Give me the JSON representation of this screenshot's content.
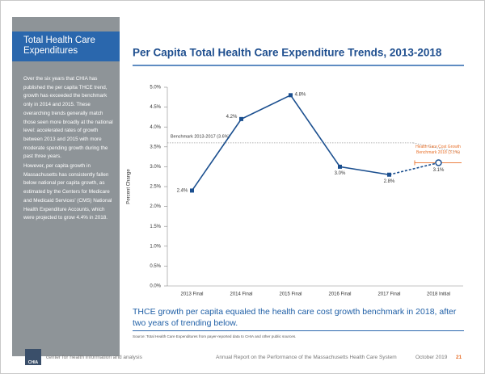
{
  "sidebar": {
    "title": "Total Health Care Expenditures",
    "paragraphs": [
      "Over the six years that CHIA has published the per capita THCE trend, growth has exceeded the benchmark only in 2014 and 2015. These overarching trends generally match those seen more broadly at the national level: accelerated rates of growth between 2013 and 2015 with more moderate spending growth during the past three years.",
      "However, per capita growth in Massachusetts has consistently fallen below national per capita growth, as estimated by the Centers for Medicare and Medicaid Services' (CMS) National Health Expenditure Accounts, which were projected to grow 4.4% in 2018."
    ]
  },
  "chart_data": {
    "type": "line",
    "title": "Per Capita Total Health Care Expenditure Trends, 2013-2018",
    "y_label": "Percent Change",
    "categories": [
      "2013 Final",
      "2014 Final",
      "2015 Final",
      "2016 Final",
      "2017 Final",
      "2018 Initial"
    ],
    "values": [
      2.4,
      4.2,
      4.8,
      3.0,
      2.8,
      3.1
    ],
    "value_labels": [
      "2.4%",
      "4.2%",
      "4.8%",
      "3.0%",
      "2.8%",
      "3.1%"
    ],
    "color": "#1b4f8f",
    "last_segment_style": "dashed",
    "ylim": [
      0,
      5
    ],
    "yticks": [
      {
        "value": 0,
        "label": "0.0%"
      },
      {
        "value": 0.5,
        "label": "0.5%"
      },
      {
        "value": 1,
        "label": "1.0%"
      },
      {
        "value": 1.5,
        "label": "1.5%"
      },
      {
        "value": 2,
        "label": "2.0%"
      },
      {
        "value": 2.5,
        "label": "2.5%"
      },
      {
        "value": 3,
        "label": "3.0%"
      },
      {
        "value": 3.5,
        "label": "3.5%"
      },
      {
        "value": 4,
        "label": "4.0%"
      },
      {
        "value": 4.5,
        "label": "4.5%"
      },
      {
        "value": 5,
        "label": "5.0%"
      }
    ],
    "benchmarks": [
      {
        "label_lines": [
          "Benchmark 2013-2017 (3.6%)"
        ],
        "value": 3.6,
        "color": "#9a9a9a"
      },
      {
        "label_lines": [
          "Health Care Cost Growth",
          "Benchmark 2018 (3.1%)"
        ],
        "value": 3.1,
        "color": "#e8702a"
      }
    ]
  },
  "caption": "THCE growth per capita equaled the health care cost growth benchmark in 2018, after two years of trending below.",
  "source": "Source: Total Health Care Expenditures from payer-reported data to CHIA and other public sources.",
  "footer": {
    "logo": "CHIA",
    "org": "center for health information and analysis",
    "report": "Annual Report on the Performance of the Massachusetts Health Care System",
    "date": "October 2019",
    "page": "21"
  }
}
